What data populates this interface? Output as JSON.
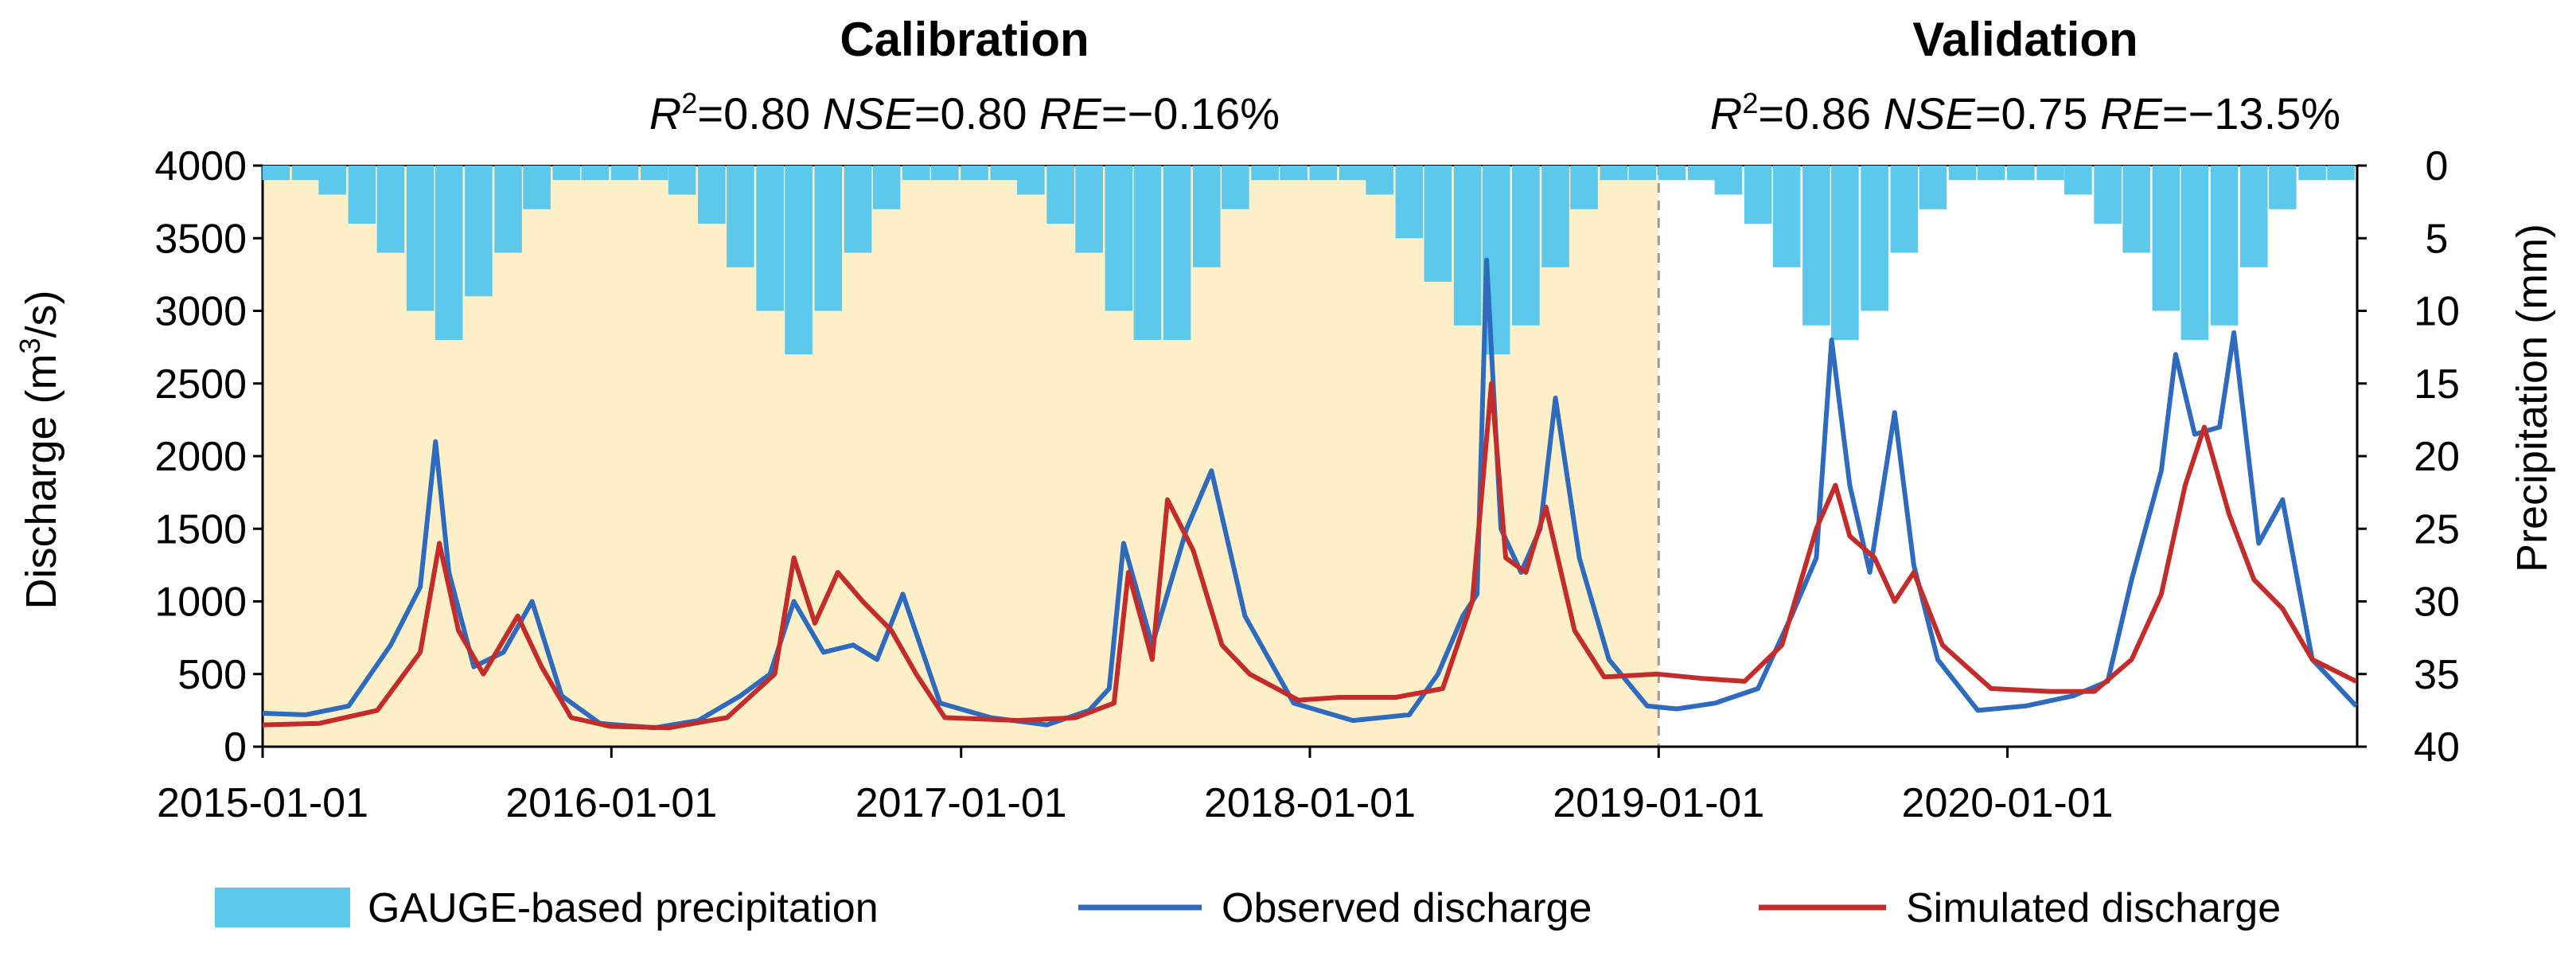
{
  "chart_data": {
    "type": "line",
    "sections": [
      {
        "name": "Calibration",
        "start": "2015-01-01",
        "end": "2019-01-01",
        "fill": "#fdf0c8",
        "stats": {
          "r2_label": "R",
          "r2_sup": "2",
          "r2_value": "=0.80 ",
          "nse_label": "NSE",
          "nse_value": "=0.80 ",
          "re_label": "RE",
          "re_value": "=−0.16%"
        }
      },
      {
        "name": "Validation",
        "start": "2019-01-01",
        "end": "2021-01-01",
        "fill": "#ffffff",
        "stats": {
          "r2_label": "R",
          "r2_sup": "2",
          "r2_value": "=0.86 ",
          "nse_label": "NSE",
          "nse_value": "=0.75 ",
          "re_label": "RE",
          "re_value": "=−13.5%"
        }
      }
    ],
    "x_range": [
      "2015-01-01",
      "2021-01-01"
    ],
    "x_ticks": [
      "2015-01-01",
      "2016-01-01",
      "2017-01-01",
      "2018-01-01",
      "2019-01-01",
      "2020-01-01"
    ],
    "y_left": {
      "label_pre": "Discharge (m",
      "label_sup": "3",
      "label_post": "/s)",
      "range": [
        0,
        4000
      ],
      "ticks": [
        "0",
        "500",
        "1000",
        "1500",
        "2000",
        "2500",
        "3000",
        "3500",
        "4000"
      ]
    },
    "y_right": {
      "label": "Precipitation (mm)",
      "range": [
        0,
        40
      ],
      "inverted": true,
      "ticks": [
        "0",
        "5",
        "10",
        "15",
        "20",
        "25",
        "30",
        "35",
        "40"
      ]
    },
    "legend_placement": "bottom",
    "series": [
      {
        "name": "GAUGE-based precipitation",
        "kind": "bar",
        "axis": "right",
        "color": "#5bc8ec",
        "x": [
          "2015-01-15",
          "2015-02-15",
          "2015-03-15",
          "2015-04-15",
          "2015-05-15",
          "2015-06-15",
          "2015-07-15",
          "2015-08-15",
          "2015-09-15",
          "2015-10-15",
          "2015-11-15",
          "2015-12-15",
          "2016-01-15",
          "2016-02-15",
          "2016-03-15",
          "2016-04-15",
          "2016-05-15",
          "2016-06-15",
          "2016-07-15",
          "2016-08-15",
          "2016-09-15",
          "2016-10-15",
          "2016-11-15",
          "2016-12-15",
          "2017-01-15",
          "2017-02-15",
          "2017-03-15",
          "2017-04-15",
          "2017-05-15",
          "2017-06-15",
          "2017-07-15",
          "2017-08-15",
          "2017-09-15",
          "2017-10-15",
          "2017-11-15",
          "2017-12-15",
          "2018-01-15",
          "2018-02-15",
          "2018-03-15",
          "2018-04-15",
          "2018-05-15",
          "2018-06-15",
          "2018-07-15",
          "2018-08-15",
          "2018-09-15",
          "2018-10-15",
          "2018-11-15",
          "2018-12-15",
          "2019-01-15",
          "2019-02-15",
          "2019-03-15",
          "2019-04-15",
          "2019-05-15",
          "2019-06-15",
          "2019-07-15",
          "2019-08-15",
          "2019-09-15",
          "2019-10-15",
          "2019-11-15",
          "2019-12-15",
          "2020-01-15",
          "2020-02-15",
          "2020-03-15",
          "2020-04-15",
          "2020-05-15",
          "2020-06-15",
          "2020-07-15",
          "2020-08-15",
          "2020-09-15",
          "2020-10-15",
          "2020-11-15",
          "2020-12-15"
        ],
        "y": [
          1,
          1,
          2,
          4,
          6,
          10,
          12,
          9,
          6,
          3,
          1,
          1,
          1,
          1,
          2,
          4,
          7,
          10,
          13,
          10,
          6,
          3,
          1,
          1,
          1,
          1,
          2,
          4,
          6,
          10,
          12,
          12,
          7,
          3,
          1,
          1,
          1,
          1,
          2,
          5,
          8,
          11,
          13,
          11,
          7,
          3,
          1,
          1,
          1,
          1,
          2,
          4,
          7,
          11,
          12,
          10,
          6,
          3,
          1,
          1,
          1,
          1,
          2,
          4,
          6,
          10,
          12,
          11,
          7,
          3,
          1,
          1
        ]
      },
      {
        "name": "Observed discharge",
        "kind": "line",
        "axis": "left",
        "color": "#2e6bbf",
        "x": [
          "2015-01-01",
          "2015-02-15",
          "2015-04-01",
          "2015-05-15",
          "2015-06-15",
          "2015-07-01",
          "2015-07-15",
          "2015-08-10",
          "2015-09-10",
          "2015-10-10",
          "2015-11-10",
          "2015-12-20",
          "2016-02-15",
          "2016-04-01",
          "2016-05-15",
          "2016-06-15",
          "2016-07-10",
          "2016-08-10",
          "2016-09-10",
          "2016-10-05",
          "2016-11-01",
          "2016-12-10",
          "2017-02-01",
          "2017-04-01",
          "2017-05-15",
          "2017-06-05",
          "2017-06-20",
          "2017-07-20",
          "2017-08-25",
          "2017-09-20",
          "2017-10-25",
          "2017-12-15",
          "2018-02-15",
          "2018-04-15",
          "2018-05-15",
          "2018-06-10",
          "2018-06-25",
          "2018-07-05",
          "2018-07-20",
          "2018-08-10",
          "2018-08-30",
          "2018-09-15",
          "2018-10-10",
          "2018-11-10",
          "2018-12-20",
          "2019-01-20",
          "2019-03-01",
          "2019-04-15",
          "2019-05-20",
          "2019-06-15",
          "2019-07-01",
          "2019-07-20",
          "2019-08-10",
          "2019-09-05",
          "2019-09-25",
          "2019-10-20",
          "2019-12-01",
          "2020-01-20",
          "2020-03-10",
          "2020-04-15",
          "2020-05-10",
          "2020-06-10",
          "2020-06-25",
          "2020-07-15",
          "2020-08-10",
          "2020-08-25",
          "2020-09-20",
          "2020-10-15",
          "2020-11-15",
          "2020-12-31"
        ],
        "y": [
          230,
          220,
          280,
          700,
          1100,
          2100,
          1200,
          550,
          650,
          1000,
          350,
          160,
          130,
          180,
          350,
          500,
          1000,
          650,
          700,
          600,
          1050,
          300,
          200,
          150,
          250,
          400,
          1400,
          700,
          1500,
          1900,
          900,
          300,
          180,
          220,
          500,
          900,
          1050,
          3350,
          1500,
          1200,
          1500,
          2400,
          1300,
          600,
          280,
          260,
          300,
          400,
          900,
          1300,
          2800,
          1800,
          1200,
          2300,
          1250,
          600,
          250,
          280,
          350,
          450,
          1150,
          1900,
          2700,
          2150,
          2200,
          2850,
          1400,
          1700,
          600,
          280
        ]
      },
      {
        "name": "Simulated discharge",
        "kind": "line",
        "axis": "left",
        "color": "#c42c2c",
        "x": [
          "2015-01-01",
          "2015-03-01",
          "2015-05-01",
          "2015-06-15",
          "2015-07-05",
          "2015-07-25",
          "2015-08-20",
          "2015-09-25",
          "2015-10-20",
          "2015-11-20",
          "2015-12-31",
          "2016-03-01",
          "2016-05-01",
          "2016-06-20",
          "2016-07-10",
          "2016-08-01",
          "2016-08-25",
          "2016-09-20",
          "2016-10-20",
          "2016-11-15",
          "2016-12-15",
          "2017-03-01",
          "2017-05-01",
          "2017-06-10",
          "2017-06-25",
          "2017-07-20",
          "2017-08-05",
          "2017-09-01",
          "2017-10-01",
          "2017-10-30",
          "2017-12-20",
          "2018-02-01",
          "2018-04-01",
          "2018-05-20",
          "2018-06-20",
          "2018-07-10",
          "2018-07-25",
          "2018-08-15",
          "2018-09-05",
          "2018-10-05",
          "2018-11-05",
          "2018-12-31",
          "2019-02-15",
          "2019-04-01",
          "2019-05-10",
          "2019-06-15",
          "2019-07-05",
          "2019-07-20",
          "2019-08-15",
          "2019-09-05",
          "2019-09-25",
          "2019-10-25",
          "2019-12-15",
          "2020-02-15",
          "2020-04-01",
          "2020-05-10",
          "2020-06-10",
          "2020-07-05",
          "2020-07-25",
          "2020-08-20",
          "2020-09-15",
          "2020-10-15",
          "2020-11-15",
          "2020-12-31"
        ],
        "y": [
          150,
          160,
          250,
          650,
          1400,
          800,
          500,
          900,
          550,
          200,
          140,
          130,
          200,
          500,
          1300,
          850,
          1200,
          1000,
          800,
          500,
          200,
          180,
          200,
          300,
          1200,
          600,
          1700,
          1350,
          700,
          500,
          320,
          340,
          340,
          400,
          1000,
          2500,
          1300,
          1200,
          1650,
          800,
          480,
          500,
          470,
          450,
          700,
          1500,
          1800,
          1450,
          1300,
          1000,
          1200,
          700,
          400,
          380,
          380,
          600,
          1050,
          1800,
          2200,
          1600,
          1150,
          950,
          600,
          450
        ]
      }
    ]
  }
}
